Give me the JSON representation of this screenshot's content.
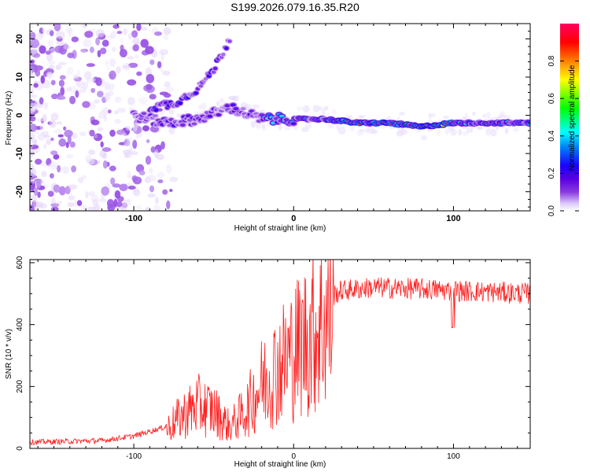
{
  "title": "S199.2026.079.16.35.R20",
  "chart_data": [
    {
      "type": "heatmap",
      "name": "spectrogram",
      "xlabel": "Height of straight line (km)",
      "ylabel": "Frequency (Hz)",
      "xlim": [
        -165,
        148
      ],
      "ylim": [
        -25,
        24
      ],
      "xticks": [
        -100,
        0,
        100
      ],
      "yticks": [
        -20,
        -10,
        0,
        10,
        20
      ],
      "colorbar": {
        "label": "Normalized spectral amplitude",
        "range": [
          0,
          1
        ],
        "ticks": [
          0.0,
          0.2,
          0.4,
          0.6,
          0.8
        ],
        "colors": [
          "#ffffff",
          "#dcc8f8",
          "#8a3ae0",
          "#5a00e0",
          "#1a00ff",
          "#0080ff",
          "#00ffff",
          "#00ff00",
          "#ffff00",
          "#ff8000",
          "#ff0000",
          "#ff0060"
        ]
      },
      "ridge": [
        {
          "x": -100,
          "f": 0
        },
        {
          "x": -80,
          "f": -2
        },
        {
          "x": -60,
          "f": -1
        },
        {
          "x": -40,
          "f": 2
        },
        {
          "x": -20,
          "f": -1
        },
        {
          "x": 0,
          "f": -1
        },
        {
          "x": 20,
          "f": -1
        },
        {
          "x": 40,
          "f": -2
        },
        {
          "x": 60,
          "f": -2
        },
        {
          "x": 80,
          "f": -3
        },
        {
          "x": 100,
          "f": -2
        },
        {
          "x": 148,
          "f": -2
        }
      ],
      "branch": [
        {
          "x": -90,
          "f": 2
        },
        {
          "x": -75,
          "f": 3
        },
        {
          "x": -60,
          "f": 7
        },
        {
          "x": -50,
          "f": 12
        },
        {
          "x": -40,
          "f": 20
        }
      ]
    },
    {
      "type": "line",
      "name": "snr",
      "xlabel": "Height of straight line (km)",
      "ylabel": "SNR (10 * v/v)",
      "xlim": [
        -165,
        148
      ],
      "ylim": [
        0,
        610
      ],
      "xticks": [
        -100,
        0,
        100
      ],
      "yticks": [
        0,
        200,
        400,
        600
      ],
      "color": "#ff2020",
      "envelope": [
        {
          "x": -165,
          "y": 20
        },
        {
          "x": -120,
          "y": 25
        },
        {
          "x": -100,
          "y": 40
        },
        {
          "x": -80,
          "y": 70
        },
        {
          "x": -70,
          "y": 120
        },
        {
          "x": -60,
          "y": 160
        },
        {
          "x": -50,
          "y": 140
        },
        {
          "x": -40,
          "y": 80
        },
        {
          "x": -30,
          "y": 140
        },
        {
          "x": -20,
          "y": 240
        },
        {
          "x": -10,
          "y": 300
        },
        {
          "x": 0,
          "y": 360
        },
        {
          "x": 10,
          "y": 420
        },
        {
          "x": 20,
          "y": 480
        },
        {
          "x": 30,
          "y": 510
        },
        {
          "x": 50,
          "y": 520
        },
        {
          "x": 80,
          "y": 515
        },
        {
          "x": 100,
          "y": 510
        },
        {
          "x": 148,
          "y": 500
        }
      ]
    }
  ]
}
